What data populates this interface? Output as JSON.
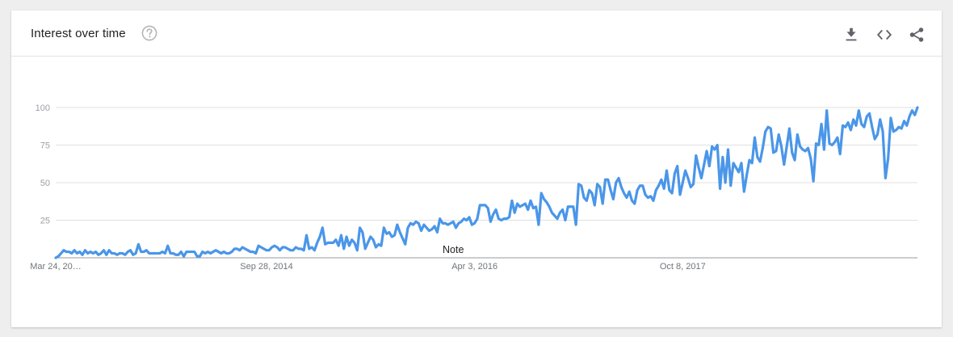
{
  "header": {
    "title": "Interest over time"
  },
  "icons": {
    "help": "help-circle-icon",
    "download": "download-icon",
    "embed": "embed-code-icon",
    "share": "share-icon"
  },
  "colors": {
    "line": "#4a96e8",
    "grid": "#e0e0e0",
    "axis": "#999999",
    "tick_text": "#9aa0a6"
  },
  "chart_data": {
    "type": "line",
    "title": "",
    "xlabel": "",
    "ylabel": "",
    "ylim": [
      0,
      100
    ],
    "yticks": [
      25,
      50,
      75,
      100
    ],
    "grid": true,
    "x_tick_labels": [
      "Mar 24, 20…",
      "Sep 28, 2014",
      "Apr 3, 2016",
      "Oct 8, 2017"
    ],
    "x_tick_positions": [
      0,
      79,
      157,
      235
    ],
    "annotations": [
      {
        "text": "Note",
        "at_index": 149
      }
    ],
    "series": [
      {
        "values": [
          0,
          1,
          3,
          5,
          4,
          4,
          3,
          5,
          3,
          4,
          2,
          5,
          3,
          4,
          3,
          4,
          2,
          3,
          5,
          2,
          5,
          3,
          3,
          2,
          3,
          3,
          2,
          4,
          5,
          2,
          3,
          9,
          4,
          4,
          5,
          3,
          3,
          3,
          3,
          3,
          4,
          3,
          8,
          3,
          3,
          2,
          2,
          4,
          1,
          4,
          4,
          4,
          4,
          1,
          1,
          4,
          3,
          4,
          3,
          4,
          5,
          4,
          3,
          4,
          3,
          3,
          4,
          6,
          6,
          5,
          7,
          6,
          5,
          4,
          4,
          3,
          8,
          7,
          6,
          5,
          5,
          7,
          8,
          7,
          5,
          7,
          7,
          6,
          5,
          5,
          7,
          6,
          6,
          5,
          15,
          6,
          7,
          5,
          10,
          14,
          20,
          9,
          10,
          10,
          10,
          12,
          8,
          15,
          6,
          14,
          8,
          12,
          10,
          5,
          20,
          17,
          6,
          10,
          14,
          12,
          7,
          9,
          8,
          20,
          16,
          17,
          14,
          15,
          22,
          17,
          13,
          9,
          20,
          23,
          22,
          24,
          23,
          18,
          22,
          20,
          18,
          19,
          21,
          17,
          26,
          23,
          23,
          22,
          23,
          24,
          20,
          23,
          24,
          26,
          25,
          27,
          22,
          23,
          26,
          35,
          35,
          35,
          33,
          24,
          29,
          32,
          26,
          25,
          26,
          26,
          27,
          38,
          30,
          36,
          34,
          35,
          36,
          32,
          38,
          33,
          34,
          22,
          43,
          39,
          37,
          34,
          30,
          28,
          26,
          30,
          32,
          25,
          34,
          34,
          34,
          22,
          49,
          48,
          40,
          38,
          45,
          43,
          35,
          49,
          47,
          36,
          52,
          52,
          45,
          39,
          50,
          53,
          47,
          43,
          40,
          44,
          38,
          36,
          45,
          48,
          48,
          42,
          40,
          41,
          38,
          45,
          48,
          52,
          46,
          58,
          45,
          43,
          56,
          61,
          42,
          50,
          58,
          53,
          47,
          49,
          68,
          60,
          53,
          62,
          71,
          61,
          74,
          72,
          75,
          46,
          67,
          50,
          72,
          48,
          63,
          60,
          57,
          63,
          44,
          55,
          65,
          63,
          80,
          67,
          64,
          73,
          84,
          87,
          86,
          70,
          71,
          82,
          74,
          62,
          74,
          86,
          70,
          65,
          82,
          74,
          72,
          71,
          73,
          66,
          51,
          76,
          75,
          89,
          72,
          98,
          76,
          75,
          77,
          80,
          69,
          88,
          87,
          90,
          85,
          92,
          88,
          98,
          89,
          87,
          94,
          96,
          87,
          79,
          82,
          92,
          84,
          53,
          66,
          93,
          84,
          85,
          87,
          86,
          91,
          88,
          94,
          98,
          95,
          100
        ]
      }
    ]
  }
}
